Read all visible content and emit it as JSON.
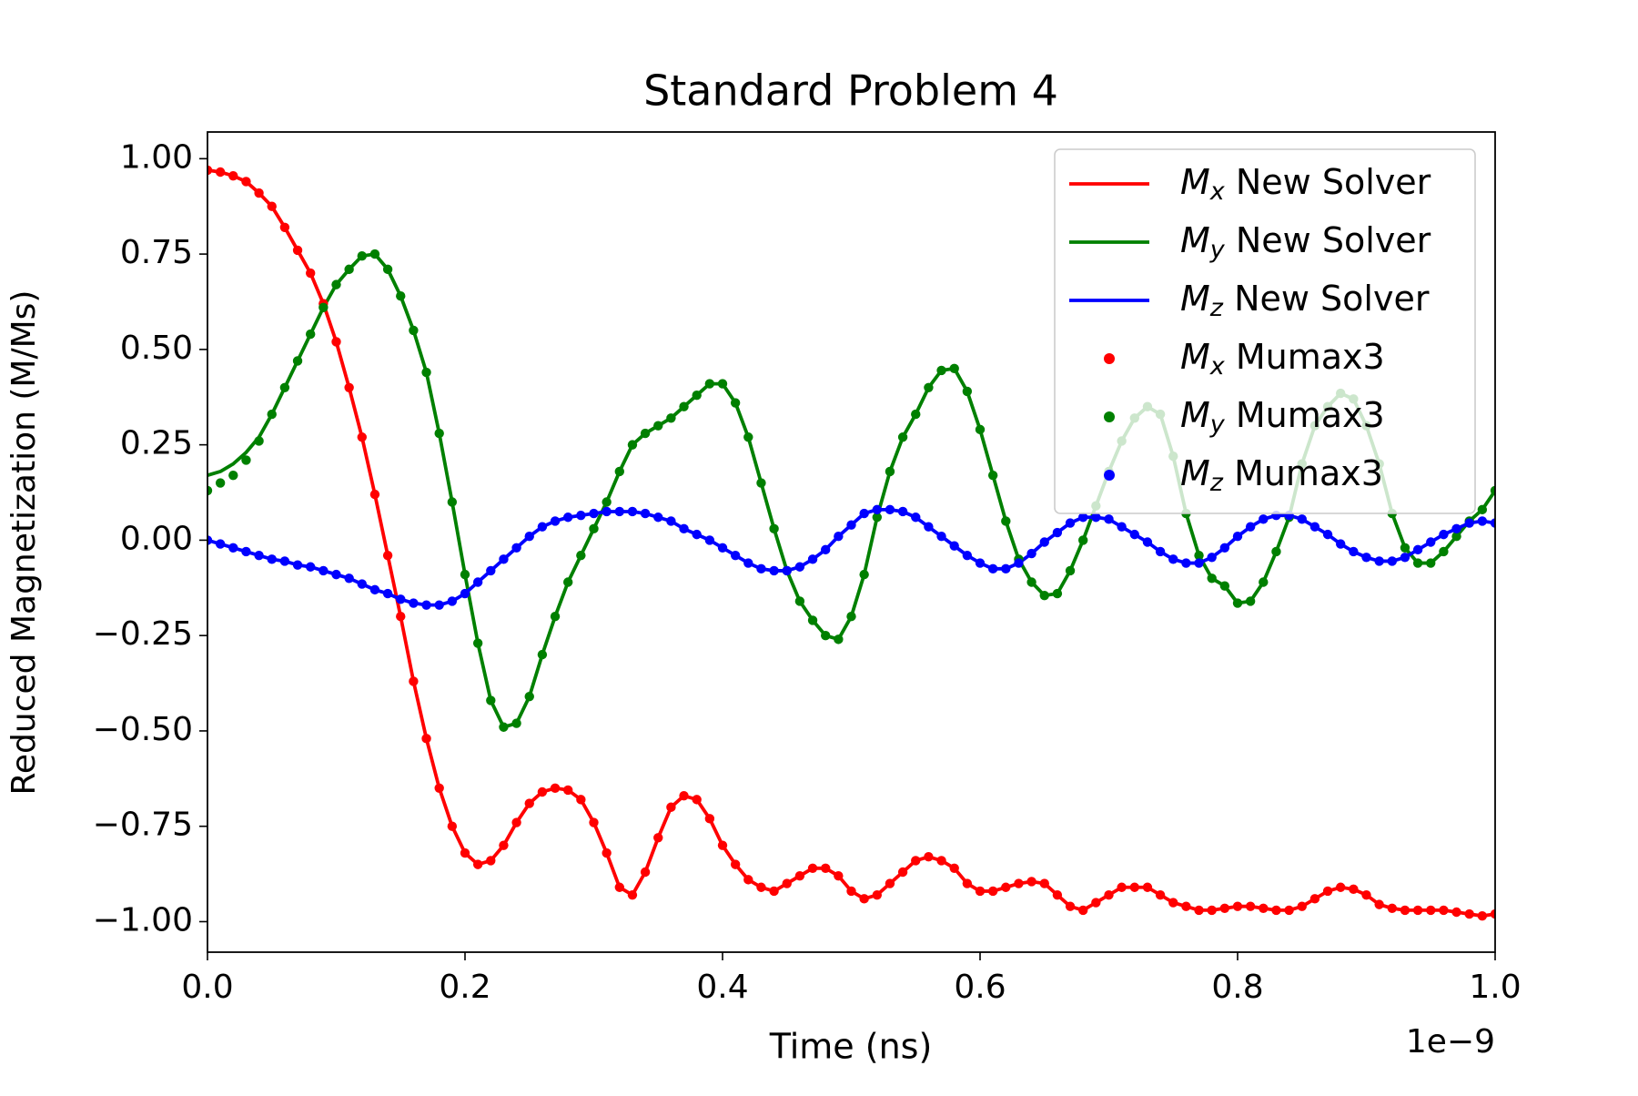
{
  "chart_data": {
    "type": "line",
    "title": "Standard Problem 4",
    "xlabel": "Time (ns)",
    "ylabel": "Reduced Magnetization (M/Ms)",
    "x_offset_label": "1e−9",
    "xlim": [
      0,
      1
    ],
    "ylim": [
      -1.08,
      1.07
    ],
    "xticks": [
      {
        "value": 0,
        "label": "0.0"
      },
      0.2,
      0.4,
      0.6,
      0.8,
      {
        "value": 1,
        "label": "1.0"
      }
    ],
    "yticks": [
      {
        "value": 1,
        "label": "1.00"
      },
      0.75,
      {
        "value": 0.5,
        "label": "0.50"
      },
      0.25,
      {
        "value": 0,
        "label": "0.00"
      },
      {
        "value": -0.25,
        "label": "−0.25"
      },
      {
        "value": -0.5,
        "label": "−0.50"
      },
      {
        "value": -0.75,
        "label": "−0.75"
      },
      {
        "value": -1,
        "label": "−1.00"
      }
    ],
    "legend": "upper right",
    "x": [
      0,
      0.01,
      0.02,
      0.03,
      0.04,
      0.05,
      0.06,
      0.07,
      0.08,
      0.09,
      0.1,
      0.11,
      0.12,
      0.13,
      0.14,
      0.15,
      0.16,
      0.17,
      0.18,
      0.19,
      0.2,
      0.21,
      0.22,
      0.23,
      0.24,
      0.25,
      0.26,
      0.27,
      0.28,
      0.29,
      0.3,
      0.31,
      0.32,
      0.33,
      0.34,
      0.35,
      0.36,
      0.37,
      0.38,
      0.39,
      0.4,
      0.41,
      0.42,
      0.43,
      0.44,
      0.45,
      0.46,
      0.47,
      0.48,
      0.49,
      0.5,
      0.51,
      0.52,
      0.53,
      0.54,
      0.55,
      0.56,
      0.57,
      0.58,
      0.59,
      0.6,
      0.61,
      0.62,
      0.63,
      0.64,
      0.65,
      0.66,
      0.67,
      0.68,
      0.69,
      0.7,
      0.71,
      0.72,
      0.73,
      0.74,
      0.75,
      0.76,
      0.77,
      0.78,
      0.79,
      0.8,
      0.81,
      0.82,
      0.83,
      0.84,
      0.85,
      0.86,
      0.87,
      0.88,
      0.89,
      0.9,
      0.91,
      0.92,
      0.93,
      0.94,
      0.95,
      0.96,
      0.97,
      0.98,
      0.99,
      1
    ],
    "series": [
      {
        "name": "Mx New Solver",
        "style": "line",
        "color": "#ff0000",
        "values": [
          0.97,
          0.965,
          0.955,
          0.94,
          0.91,
          0.875,
          0.82,
          0.76,
          0.7,
          0.62,
          0.52,
          0.4,
          0.27,
          0.12,
          -0.04,
          -0.2,
          -0.37,
          -0.52,
          -0.65,
          -0.75,
          -0.82,
          -0.85,
          -0.84,
          -0.8,
          -0.74,
          -0.69,
          -0.66,
          -0.65,
          -0.655,
          -0.68,
          -0.74,
          -0.82,
          -0.91,
          -0.93,
          -0.87,
          -0.78,
          -0.7,
          -0.67,
          -0.68,
          -0.73,
          -0.8,
          -0.85,
          -0.89,
          -0.91,
          -0.92,
          -0.9,
          -0.88,
          -0.86,
          -0.86,
          -0.88,
          -0.92,
          -0.94,
          -0.93,
          -0.9,
          -0.87,
          -0.84,
          -0.83,
          -0.84,
          -0.86,
          -0.9,
          -0.92,
          -0.92,
          -0.91,
          -0.9,
          -0.895,
          -0.9,
          -0.93,
          -0.96,
          -0.97,
          -0.95,
          -0.93,
          -0.91,
          -0.91,
          -0.91,
          -0.93,
          -0.95,
          -0.96,
          -0.97,
          -0.97,
          -0.965,
          -0.96,
          -0.96,
          -0.965,
          -0.97,
          -0.97,
          -0.96,
          -0.94,
          -0.92,
          -0.91,
          -0.915,
          -0.93,
          -0.955,
          -0.965,
          -0.97,
          -0.97,
          -0.97,
          -0.97,
          -0.975,
          -0.98,
          -0.985,
          -0.98
        ]
      },
      {
        "name": "My New Solver",
        "style": "line",
        "color": "#008000",
        "values": [
          0.17,
          0.18,
          0.2,
          0.23,
          0.27,
          0.33,
          0.4,
          0.47,
          0.54,
          0.61,
          0.67,
          0.71,
          0.745,
          0.75,
          0.71,
          0.64,
          0.55,
          0.44,
          0.28,
          0.1,
          -0.09,
          -0.27,
          -0.42,
          -0.49,
          -0.48,
          -0.41,
          -0.3,
          -0.2,
          -0.11,
          -0.04,
          0.03,
          0.1,
          0.18,
          0.25,
          0.28,
          0.3,
          0.32,
          0.35,
          0.38,
          0.41,
          0.41,
          0.36,
          0.27,
          0.15,
          0.03,
          -0.08,
          -0.16,
          -0.21,
          -0.25,
          -0.26,
          -0.2,
          -0.09,
          0.06,
          0.18,
          0.27,
          0.33,
          0.4,
          0.445,
          0.45,
          0.39,
          0.29,
          0.17,
          0.05,
          -0.05,
          -0.11,
          -0.145,
          -0.14,
          -0.08,
          0,
          0.09,
          0.18,
          0.26,
          0.32,
          0.35,
          0.33,
          0.22,
          0.07,
          -0.04,
          -0.1,
          -0.12,
          -0.165,
          -0.16,
          -0.11,
          -0.03,
          0.06,
          0.2,
          0.3,
          0.35,
          0.385,
          0.37,
          0.3,
          0.2,
          0.07,
          -0.02,
          -0.06,
          -0.06,
          -0.03,
          0.01,
          0.05,
          0.08,
          0.13
        ]
      },
      {
        "name": "Mz New Solver",
        "style": "line",
        "color": "#0000ff",
        "values": [
          0,
          -0.01,
          -0.02,
          -0.03,
          -0.04,
          -0.05,
          -0.055,
          -0.065,
          -0.07,
          -0.08,
          -0.09,
          -0.1,
          -0.115,
          -0.13,
          -0.14,
          -0.155,
          -0.165,
          -0.17,
          -0.17,
          -0.16,
          -0.14,
          -0.11,
          -0.08,
          -0.05,
          -0.02,
          0.01,
          0.035,
          0.05,
          0.06,
          0.065,
          0.07,
          0.075,
          0.075,
          0.075,
          0.07,
          0.06,
          0.05,
          0.03,
          0.015,
          0,
          -0.02,
          -0.04,
          -0.06,
          -0.075,
          -0.08,
          -0.08,
          -0.07,
          -0.05,
          -0.025,
          0.01,
          0.04,
          0.07,
          0.08,
          0.08,
          0.075,
          0.06,
          0.035,
          0.01,
          -0.015,
          -0.04,
          -0.06,
          -0.075,
          -0.075,
          -0.06,
          -0.035,
          -0.005,
          0.02,
          0.045,
          0.06,
          0.06,
          0.055,
          0.035,
          0.015,
          -0.005,
          -0.03,
          -0.05,
          -0.06,
          -0.06,
          -0.045,
          -0.02,
          0.01,
          0.035,
          0.055,
          0.065,
          0.065,
          0.055,
          0.035,
          0.015,
          -0.01,
          -0.03,
          -0.045,
          -0.055,
          -0.055,
          -0.045,
          -0.025,
          -0.005,
          0.015,
          0.03,
          0.045,
          0.05,
          0.045
        ]
      },
      {
        "name": "Mx Mumax3",
        "style": "marker",
        "color": "#ff0000",
        "values": [
          0.97,
          0.965,
          0.955,
          0.94,
          0.91,
          0.875,
          0.82,
          0.76,
          0.7,
          0.62,
          0.52,
          0.4,
          0.27,
          0.12,
          -0.04,
          -0.2,
          -0.37,
          -0.52,
          -0.65,
          -0.75,
          -0.82,
          -0.85,
          -0.84,
          -0.8,
          -0.74,
          -0.69,
          -0.66,
          -0.65,
          -0.655,
          -0.68,
          -0.74,
          -0.82,
          -0.91,
          -0.93,
          -0.87,
          -0.78,
          -0.7,
          -0.67,
          -0.68,
          -0.73,
          -0.8,
          -0.85,
          -0.89,
          -0.91,
          -0.92,
          -0.9,
          -0.88,
          -0.86,
          -0.86,
          -0.88,
          -0.92,
          -0.94,
          -0.93,
          -0.9,
          -0.87,
          -0.84,
          -0.83,
          -0.84,
          -0.86,
          -0.9,
          -0.92,
          -0.92,
          -0.91,
          -0.9,
          -0.895,
          -0.9,
          -0.93,
          -0.96,
          -0.97,
          -0.95,
          -0.93,
          -0.91,
          -0.91,
          -0.91,
          -0.93,
          -0.95,
          -0.96,
          -0.97,
          -0.97,
          -0.965,
          -0.96,
          -0.96,
          -0.965,
          -0.97,
          -0.97,
          -0.96,
          -0.94,
          -0.92,
          -0.91,
          -0.915,
          -0.93,
          -0.955,
          -0.965,
          -0.97,
          -0.97,
          -0.97,
          -0.97,
          -0.975,
          -0.98,
          -0.985,
          -0.98
        ]
      },
      {
        "name": "My Mumax3",
        "style": "marker",
        "color": "#008000",
        "values": [
          0.13,
          0.15,
          0.17,
          0.21,
          0.26,
          0.33,
          0.4,
          0.47,
          0.54,
          0.61,
          0.67,
          0.71,
          0.745,
          0.75,
          0.71,
          0.64,
          0.55,
          0.44,
          0.28,
          0.1,
          -0.09,
          -0.27,
          -0.42,
          -0.49,
          -0.48,
          -0.41,
          -0.3,
          -0.2,
          -0.11,
          -0.04,
          0.03,
          0.1,
          0.18,
          0.25,
          0.28,
          0.3,
          0.32,
          0.35,
          0.38,
          0.41,
          0.41,
          0.36,
          0.27,
          0.15,
          0.03,
          -0.08,
          -0.16,
          -0.21,
          -0.25,
          -0.26,
          -0.2,
          -0.09,
          0.06,
          0.18,
          0.27,
          0.33,
          0.4,
          0.445,
          0.45,
          0.39,
          0.29,
          0.17,
          0.05,
          -0.05,
          -0.11,
          -0.145,
          -0.14,
          -0.08,
          0,
          0.09,
          0.18,
          0.26,
          0.32,
          0.35,
          0.33,
          0.22,
          0.07,
          -0.04,
          -0.1,
          -0.12,
          -0.165,
          -0.16,
          -0.11,
          -0.03,
          0.06,
          0.2,
          0.3,
          0.35,
          0.385,
          0.37,
          0.3,
          0.2,
          0.07,
          -0.02,
          -0.06,
          -0.06,
          -0.03,
          0.01,
          0.05,
          0.08,
          0.13
        ]
      },
      {
        "name": "Mz Mumax3",
        "style": "marker",
        "color": "#0000ff",
        "values": [
          0,
          -0.01,
          -0.02,
          -0.03,
          -0.04,
          -0.05,
          -0.055,
          -0.065,
          -0.07,
          -0.08,
          -0.09,
          -0.1,
          -0.115,
          -0.13,
          -0.14,
          -0.155,
          -0.165,
          -0.17,
          -0.17,
          -0.16,
          -0.14,
          -0.11,
          -0.08,
          -0.05,
          -0.02,
          0.01,
          0.035,
          0.05,
          0.06,
          0.065,
          0.07,
          0.075,
          0.075,
          0.075,
          0.07,
          0.06,
          0.05,
          0.03,
          0.015,
          0,
          -0.02,
          -0.04,
          -0.06,
          -0.075,
          -0.08,
          -0.08,
          -0.07,
          -0.05,
          -0.025,
          0.01,
          0.04,
          0.07,
          0.08,
          0.08,
          0.075,
          0.06,
          0.035,
          0.01,
          -0.015,
          -0.04,
          -0.06,
          -0.075,
          -0.075,
          -0.06,
          -0.035,
          -0.005,
          0.02,
          0.045,
          0.06,
          0.06,
          0.055,
          0.035,
          0.015,
          -0.005,
          -0.03,
          -0.05,
          -0.06,
          -0.06,
          -0.045,
          -0.02,
          0.01,
          0.035,
          0.055,
          0.065,
          0.065,
          0.055,
          0.035,
          0.015,
          -0.01,
          -0.03,
          -0.045,
          -0.055,
          -0.055,
          -0.045,
          -0.025,
          -0.005,
          0.015,
          0.03,
          0.045,
          0.05,
          0.045
        ]
      }
    ]
  }
}
